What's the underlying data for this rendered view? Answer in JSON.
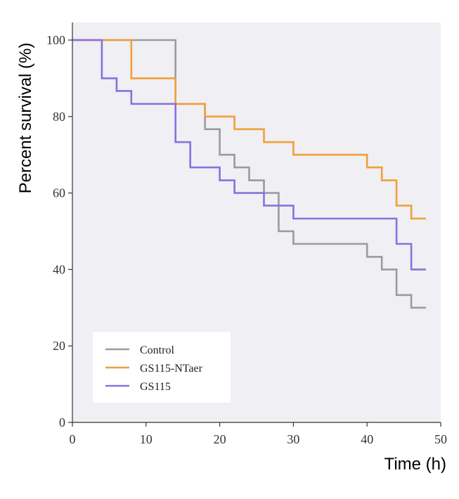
{
  "chart_data": {
    "type": "line",
    "step": true,
    "xlabel": "Time (h)",
    "ylabel": "Percent survival (%)",
    "xlim": [
      0,
      50
    ],
    "ylim": [
      0,
      100
    ],
    "x_ticks": [
      "0",
      "10",
      "20",
      "30",
      "40",
      "50"
    ],
    "y_ticks": [
      "0",
      "20",
      "40",
      "60",
      "80",
      "100"
    ],
    "background": "#f0eff3",
    "legend_position": "bottom-left",
    "series": [
      {
        "name": "Control",
        "color": "#9a9aa2",
        "points": [
          [
            0,
            100
          ],
          [
            14,
            100
          ],
          [
            14,
            83.3
          ],
          [
            18,
            83.3
          ],
          [
            18,
            76.7
          ],
          [
            20,
            76.7
          ],
          [
            20,
            70
          ],
          [
            22,
            70
          ],
          [
            22,
            66.7
          ],
          [
            24,
            66.7
          ],
          [
            24,
            63.3
          ],
          [
            26,
            63.3
          ],
          [
            26,
            60
          ],
          [
            28,
            60
          ],
          [
            28,
            50
          ],
          [
            30,
            50
          ],
          [
            30,
            46.7
          ],
          [
            40,
            46.7
          ],
          [
            40,
            43.3
          ],
          [
            42,
            43.3
          ],
          [
            42,
            40
          ],
          [
            44,
            40
          ],
          [
            44,
            33.3
          ],
          [
            46,
            33.3
          ],
          [
            46,
            30
          ],
          [
            48,
            30
          ]
        ]
      },
      {
        "name": "GS115-NTaer",
        "color": "#f0a03a",
        "points": [
          [
            0,
            100
          ],
          [
            8,
            100
          ],
          [
            8,
            90
          ],
          [
            14,
            90
          ],
          [
            14,
            83.3
          ],
          [
            18,
            83.3
          ],
          [
            18,
            80
          ],
          [
            22,
            80
          ],
          [
            22,
            76.7
          ],
          [
            26,
            76.7
          ],
          [
            26,
            73.3
          ],
          [
            30,
            73.3
          ],
          [
            30,
            70
          ],
          [
            40,
            70
          ],
          [
            40,
            66.7
          ],
          [
            42,
            66.7
          ],
          [
            42,
            63.3
          ],
          [
            44,
            63.3
          ],
          [
            44,
            56.7
          ],
          [
            46,
            56.7
          ],
          [
            46,
            53.3
          ],
          [
            48,
            53.3
          ]
        ]
      },
      {
        "name": "GS115",
        "color": "#8a70e0",
        "points": [
          [
            0,
            100
          ],
          [
            4,
            100
          ],
          [
            4,
            90
          ],
          [
            6,
            90
          ],
          [
            6,
            86.7
          ],
          [
            8,
            86.7
          ],
          [
            8,
            83.3
          ],
          [
            14,
            83.3
          ],
          [
            14,
            73.3
          ],
          [
            16,
            73.3
          ],
          [
            16,
            66.7
          ],
          [
            20,
            66.7
          ],
          [
            20,
            63.3
          ],
          [
            22,
            63.3
          ],
          [
            22,
            60
          ],
          [
            26,
            60
          ],
          [
            26,
            56.7
          ],
          [
            30,
            56.7
          ],
          [
            30,
            53.3
          ],
          [
            44,
            53.3
          ],
          [
            44,
            46.7
          ],
          [
            46,
            46.7
          ],
          [
            46,
            40
          ],
          [
            48,
            40
          ]
        ]
      }
    ]
  }
}
